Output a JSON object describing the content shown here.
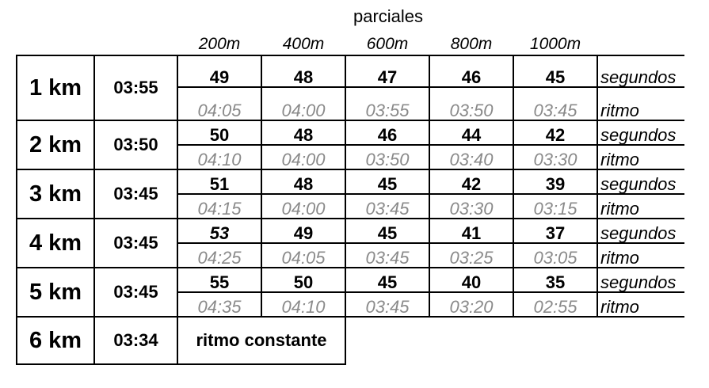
{
  "title": "parciales",
  "distances": [
    "200m",
    "400m",
    "600m",
    "800m",
    "1000m"
  ],
  "row_labels": {
    "seconds": "segundos",
    "pace": "ritmo"
  },
  "rows": [
    {
      "km": "1 km",
      "time": "03:55",
      "seconds": [
        "49",
        "48",
        "47",
        "46",
        "45"
      ],
      "pace": [
        "04:05",
        "04:00",
        "03:55",
        "03:50",
        "03:45"
      ]
    },
    {
      "km": "2 km",
      "time": "03:50",
      "seconds": [
        "50",
        "48",
        "46",
        "44",
        "42"
      ],
      "pace": [
        "04:10",
        "04:00",
        "03:50",
        "03:40",
        "03:30"
      ]
    },
    {
      "km": "3 km",
      "time": "03:45",
      "seconds": [
        "51",
        "48",
        "45",
        "42",
        "39"
      ],
      "pace": [
        "04:15",
        "04:00",
        "03:45",
        "03:30",
        "03:15"
      ]
    },
    {
      "km": "4 km",
      "time": "03:45",
      "seconds": [
        "53",
        "49",
        "45",
        "41",
        "37"
      ],
      "pace": [
        "04:25",
        "04:05",
        "03:45",
        "03:25",
        "03:05"
      ]
    },
    {
      "km": "5 km",
      "time": "03:45",
      "seconds": [
        "55",
        "50",
        "45",
        "40",
        "35"
      ],
      "pace": [
        "04:35",
        "04:10",
        "03:45",
        "03:20",
        "02:55"
      ]
    }
  ],
  "final_row": {
    "km": "6 km",
    "time": "03:34",
    "note": "ritmo constante"
  }
}
